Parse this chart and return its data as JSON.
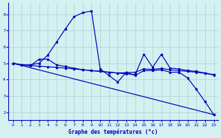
{
  "bg_color": "#d4f0f0",
  "grid_color": "#aacfcf",
  "line_color": "#0000bb",
  "xlabel": "Graphe des températures (°c)",
  "xlim": [
    -0.5,
    23.5
  ],
  "ylim": [
    1.5,
    8.7
  ],
  "xticks": [
    0,
    1,
    2,
    3,
    4,
    5,
    6,
    7,
    8,
    9,
    10,
    11,
    12,
    13,
    14,
    15,
    16,
    17,
    18,
    19,
    20,
    21,
    22,
    23
  ],
  "yticks": [
    2,
    3,
    4,
    5,
    6,
    7,
    8
  ],
  "series1_x": [
    0,
    1,
    2,
    3,
    4,
    5,
    6,
    7,
    8,
    9,
    10,
    11,
    12,
    13,
    14,
    15,
    16,
    17,
    18,
    19,
    20,
    21,
    22,
    23
  ],
  "series1_y": [
    5.0,
    4.9,
    4.9,
    5.0,
    5.5,
    6.3,
    7.1,
    7.85,
    8.1,
    8.2,
    4.65,
    4.25,
    3.85,
    4.45,
    4.25,
    4.55,
    4.55,
    4.6,
    4.45,
    4.45,
    4.1,
    3.4,
    2.65,
    1.85
  ],
  "series2_x": [
    0,
    1,
    2,
    3,
    4,
    5,
    6,
    7,
    8,
    9,
    10,
    11,
    12,
    13,
    14,
    15,
    16,
    17,
    18,
    19,
    20,
    21,
    22,
    23
  ],
  "series2_y": [
    5.0,
    4.9,
    4.85,
    5.25,
    5.25,
    4.9,
    4.8,
    4.7,
    4.6,
    4.55,
    4.5,
    4.45,
    4.4,
    4.35,
    4.3,
    5.55,
    4.75,
    5.55,
    4.7,
    4.65,
    4.55,
    4.5,
    4.4,
    4.3
  ],
  "series3_x": [
    0,
    1,
    2,
    3,
    4,
    5,
    6,
    7,
    8,
    9,
    10,
    11,
    12,
    13,
    14,
    15,
    16,
    17,
    18,
    19,
    20,
    21,
    22,
    23
  ],
  "series3_y": [
    5.0,
    4.9,
    4.85,
    4.82,
    4.78,
    4.75,
    4.7,
    4.65,
    4.6,
    4.55,
    4.5,
    4.45,
    4.4,
    4.42,
    4.45,
    4.65,
    4.62,
    4.68,
    4.6,
    4.55,
    4.5,
    4.45,
    4.38,
    4.28
  ],
  "series4_x": [
    0,
    23
  ],
  "series4_y": [
    5.0,
    1.85
  ]
}
